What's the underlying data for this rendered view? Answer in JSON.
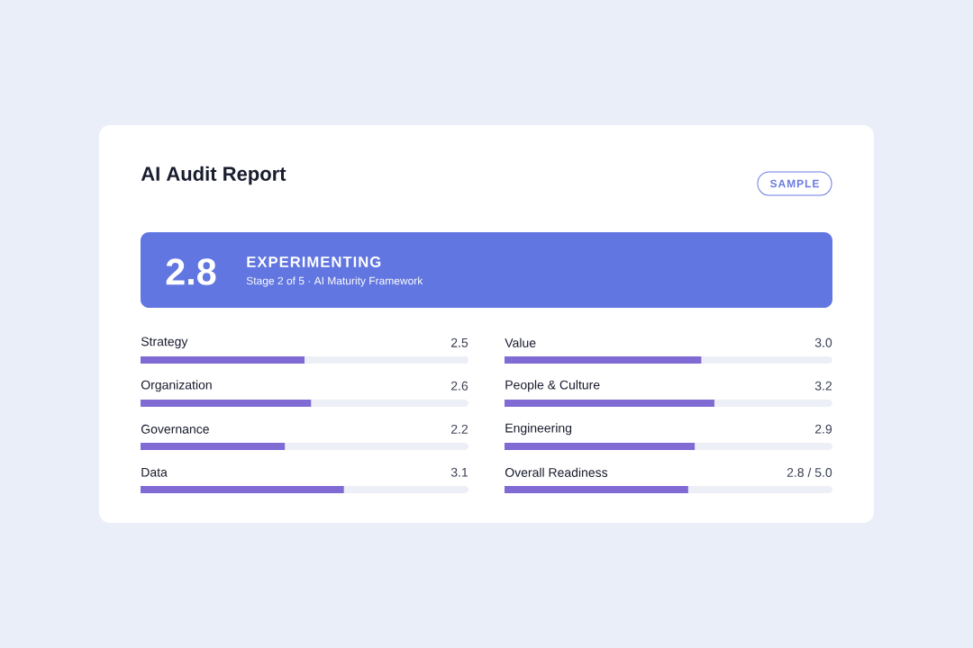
{
  "chart_data": [
    {
      "type": "other",
      "title": "AI Audit Report",
      "annotations": [
        "SAMPLE",
        "2.8",
        "EXPERIMENTING",
        "Stage 2 of 5 · AI Maturity Framework"
      ]
    },
    {
      "type": "bar",
      "orientation": "horizontal",
      "categories": [
        "Strategy",
        "Organization",
        "Governance",
        "Data"
      ],
      "values": [
        2.5,
        2.6,
        2.2,
        3.1
      ],
      "value_labels": [
        "2.5",
        "2.6",
        "2.2",
        "3.1"
      ],
      "xlim": [
        0,
        5
      ],
      "color": "#7f6bd3"
    },
    {
      "type": "bar",
      "orientation": "horizontal",
      "categories": [
        "Value",
        "People & Culture",
        "Engineering",
        "Overall Readiness"
      ],
      "values": [
        3.0,
        3.2,
        2.9,
        2.8
      ],
      "value_labels": [
        "3.0",
        "3.2",
        "2.9",
        "2.8 / 5.0"
      ],
      "xlim": [
        0,
        5
      ],
      "color": "#7f6bd3"
    }
  ]
}
